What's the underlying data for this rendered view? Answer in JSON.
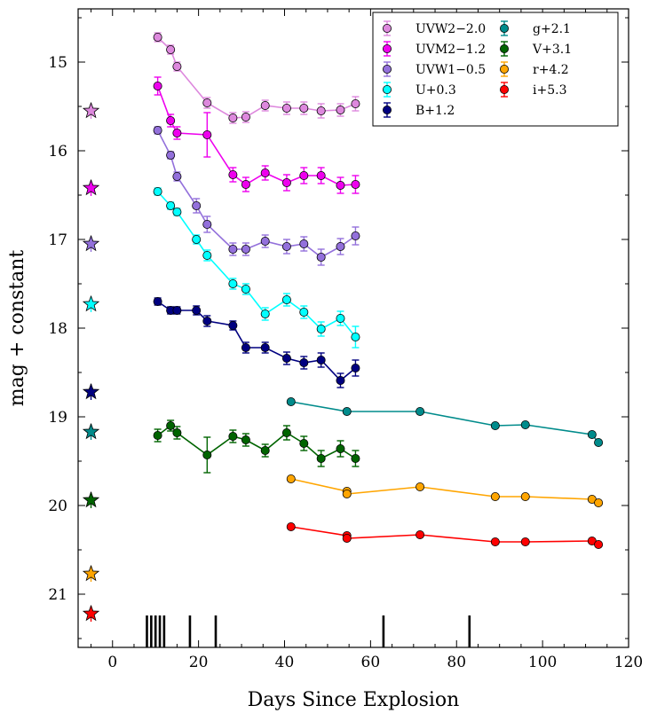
{
  "chart_data": {
    "type": "scatter",
    "xlabel": "Days Since Explosion",
    "ylabel": "mag + constant",
    "xlim": [
      -8,
      120
    ],
    "ylim": [
      21.6,
      14.4
    ],
    "y_inverted": true,
    "legend_position": "top-right",
    "x_ticks": [
      0,
      20,
      40,
      60,
      80,
      100,
      120
    ],
    "x_tick_labels": [
      "0",
      "20",
      "40",
      "60",
      "80",
      "100",
      "120"
    ],
    "y_ticks": [
      15,
      16,
      17,
      18,
      19,
      20,
      21
    ],
    "y_tick_labels": [
      "15",
      "16",
      "17",
      "18",
      "19",
      "20",
      "21"
    ],
    "epoch_markers": [
      8,
      9,
      10,
      11,
      12,
      18,
      24,
      63,
      83
    ],
    "series": [
      {
        "name": "UVW2−2.0",
        "color": "#dd88dd",
        "x": [
          10.5,
          13.5,
          15,
          22,
          28,
          31,
          35.5,
          40.5,
          44.5,
          48.5,
          53,
          56.5
        ],
        "y": [
          14.72,
          14.86,
          15.05,
          15.46,
          15.63,
          15.62,
          15.49,
          15.52,
          15.52,
          15.55,
          15.54,
          15.47
        ],
        "err": [
          0.05,
          0.05,
          0.05,
          0.06,
          0.06,
          0.06,
          0.06,
          0.07,
          0.07,
          0.08,
          0.07,
          0.08
        ],
        "star_y": 15.55
      },
      {
        "name": "UVM2−1.2",
        "color": "#ee00ee",
        "x": [
          10.5,
          13.5,
          15,
          22,
          28,
          31,
          35.5,
          40.5,
          44.5,
          48.5,
          53,
          56.5
        ],
        "y": [
          15.27,
          15.66,
          15.8,
          15.82,
          16.27,
          16.38,
          16.25,
          16.36,
          16.28,
          16.28,
          16.39,
          16.38
        ],
        "err": [
          0.1,
          0.07,
          0.07,
          0.25,
          0.08,
          0.08,
          0.08,
          0.09,
          0.09,
          0.09,
          0.09,
          0.1
        ],
        "star_y": 16.42
      },
      {
        "name": "UVW1−0.5",
        "color": "#9370db",
        "x": [
          10.5,
          13.5,
          15,
          19.5,
          22,
          28,
          31,
          35.5,
          40.5,
          44.5,
          48.5,
          53,
          56.5
        ],
        "y": [
          15.77,
          16.05,
          16.29,
          16.62,
          16.83,
          17.11,
          17.11,
          17.02,
          17.08,
          17.05,
          17.2,
          17.08,
          16.96
        ],
        "err": [
          0.04,
          0.04,
          0.05,
          0.08,
          0.09,
          0.07,
          0.07,
          0.07,
          0.08,
          0.08,
          0.09,
          0.09,
          0.1
        ],
        "star_y": 17.05
      },
      {
        "name": "U+0.3",
        "color": "#00ffff",
        "x": [
          10.5,
          13.5,
          15,
          19.5,
          22,
          28,
          31,
          35.5,
          40.5,
          44.5,
          48.5,
          53,
          56.5
        ],
        "y": [
          16.46,
          16.62,
          16.69,
          17.0,
          17.18,
          17.5,
          17.56,
          17.84,
          17.68,
          17.82,
          18.01,
          17.89,
          18.1
        ],
        "err": [
          0.04,
          0.04,
          0.04,
          0.05,
          0.06,
          0.06,
          0.06,
          0.07,
          0.07,
          0.07,
          0.08,
          0.08,
          0.12
        ],
        "star_y": 17.73
      },
      {
        "name": "B+1.2",
        "color": "#000080",
        "x": [
          10.5,
          13.5,
          15,
          19.5,
          22,
          28,
          31,
          35.5,
          40.5,
          44.5,
          48.5,
          53,
          56.5
        ],
        "y": [
          17.7,
          17.8,
          17.8,
          17.8,
          17.92,
          17.97,
          18.22,
          18.22,
          18.34,
          18.39,
          18.36,
          18.59,
          18.45
        ],
        "err": [
          0.04,
          0.04,
          0.04,
          0.05,
          0.06,
          0.05,
          0.06,
          0.06,
          0.07,
          0.07,
          0.08,
          0.08,
          0.09
        ],
        "star_y": 18.72
      },
      {
        "name": "g+2.1",
        "color": "#008b8b",
        "x": [
          41.5,
          54.5,
          71.5,
          89,
          96,
          111.5,
          113
        ],
        "y": [
          18.83,
          18.94,
          18.94,
          19.1,
          19.09,
          19.2,
          19.29
        ],
        "err": [
          0.02,
          0.02,
          0.02,
          0.02,
          0.02,
          0.02,
          0.02
        ],
        "star_y": 19.17
      },
      {
        "name": "V+3.1",
        "color": "#006400",
        "x": [
          10.5,
          13.5,
          15,
          22,
          28,
          31,
          35.5,
          40.5,
          44.5,
          48.5,
          53,
          56.5
        ],
        "y": [
          19.21,
          19.1,
          19.18,
          19.43,
          19.22,
          19.26,
          19.38,
          19.18,
          19.3,
          19.47,
          19.36,
          19.47
        ],
        "err": [
          0.07,
          0.06,
          0.07,
          0.2,
          0.07,
          0.07,
          0.07,
          0.08,
          0.08,
          0.09,
          0.09,
          0.09
        ],
        "star_y": 19.94
      },
      {
        "name": "r+4.2",
        "color": "#ffa500",
        "x": [
          41.5,
          54.5,
          54.5,
          71.5,
          89,
          96,
          111.5,
          113
        ],
        "y": [
          19.7,
          19.84,
          19.87,
          19.79,
          19.9,
          19.9,
          19.93,
          19.97
        ],
        "err": [
          0.02,
          0.02,
          0.02,
          0.02,
          0.02,
          0.02,
          0.02,
          0.02
        ],
        "star_y": 20.77
      },
      {
        "name": "i+5.3",
        "color": "#ff0000",
        "x": [
          41.5,
          54.5,
          54.5,
          71.5,
          89,
          96,
          111.5,
          113
        ],
        "y": [
          20.24,
          20.34,
          20.37,
          20.33,
          20.41,
          20.41,
          20.4,
          20.44
        ],
        "err": [
          0.02,
          0.02,
          0.02,
          0.02,
          0.02,
          0.02,
          0.02,
          0.02
        ],
        "star_y": 21.22
      }
    ],
    "legend_columns": [
      [
        0,
        1,
        2,
        3,
        4
      ],
      [
        5,
        6,
        7,
        8
      ]
    ],
    "star_x": -5
  }
}
